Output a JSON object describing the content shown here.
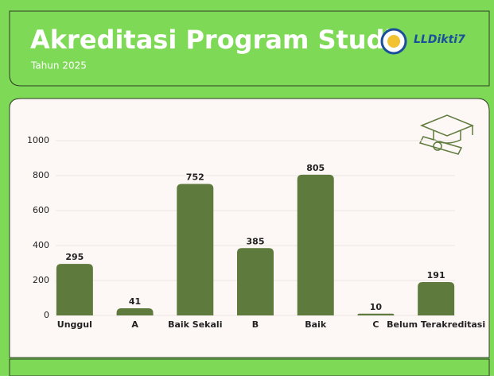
{
  "logo_text": "LLDikti7",
  "chart_data": {
    "type": "bar",
    "title": "Akreditasi Program Studi",
    "subtitle": "Tahun 2025",
    "categories": [
      "Unggul",
      "A",
      "Baik Sekali",
      "B",
      "Baik",
      "C",
      "Belum Terakreditasi"
    ],
    "values": [
      295,
      41,
      752,
      385,
      805,
      10,
      191
    ],
    "color": "#5e7a3c",
    "ylim": [
      0,
      1000
    ],
    "yticks": [
      0,
      200,
      400,
      600,
      800,
      1000
    ],
    "grid": true
  }
}
